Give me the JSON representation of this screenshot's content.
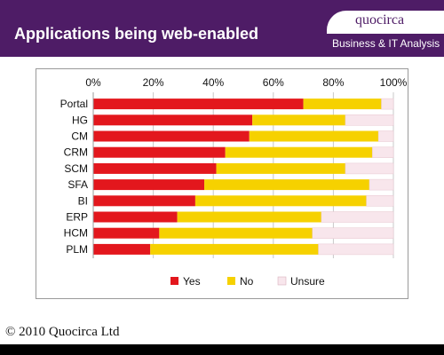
{
  "slide": {
    "title": "Applications being web-enabled",
    "logo": "quocirca",
    "tagline": "Business & IT Analysis",
    "copyright": "© 2010 Quocirca Ltd",
    "colors": {
      "header_bg": "#4e1c66",
      "yes": "#e3171d",
      "no": "#f6d100",
      "unsure": "#f8e6ec"
    }
  },
  "chart_data": {
    "type": "bar",
    "orientation": "horizontal",
    "stacked": "100%",
    "title": "",
    "xlabel": "",
    "ylabel": "",
    "xlim": [
      0,
      100
    ],
    "x_ticks": [
      "0%",
      "20%",
      "40%",
      "60%",
      "80%",
      "100%"
    ],
    "x_axis_position": "top",
    "grid": true,
    "legend_position": "bottom",
    "categories": [
      "Portal",
      "HG",
      "CM",
      "CRM",
      "SCM",
      "SFA",
      "BI",
      "ERP",
      "HCM",
      "PLM"
    ],
    "series": [
      {
        "name": "Yes",
        "color": "#e3171d",
        "values": [
          70,
          53,
          52,
          44,
          41,
          37,
          34,
          28,
          22,
          19
        ]
      },
      {
        "name": "No",
        "color": "#f6d100",
        "values": [
          26,
          31,
          43,
          49,
          43,
          55,
          57,
          48,
          51,
          56
        ]
      },
      {
        "name": "Unsure",
        "color": "#f8e6ec",
        "values": [
          4,
          16,
          5,
          7,
          16,
          8,
          9,
          24,
          27,
          25
        ]
      }
    ]
  }
}
